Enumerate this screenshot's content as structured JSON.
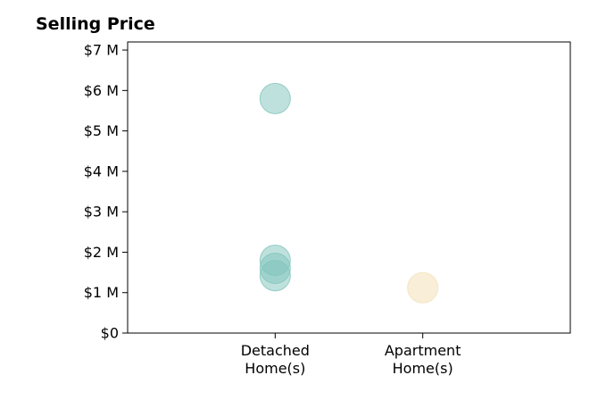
{
  "chart_data": {
    "type": "scatter",
    "title": "Selling Price",
    "xlabel": "",
    "ylabel": "",
    "categories": [
      "Detached\nHome(s)",
      "Apartment\nHome(s)"
    ],
    "ylim": [
      0,
      7.2
    ],
    "y_ticks": [
      "$0",
      "$1 M",
      "$2 M",
      "$3 M",
      "$4 M",
      "$5 M",
      "$6 M",
      "$7 M"
    ],
    "grid": false,
    "series": [
      {
        "category_index": 0,
        "color": "#7fc4bc",
        "values": [
          5.8,
          1.8,
          1.6,
          1.42
        ]
      },
      {
        "category_index": 1,
        "color": "#f3e0b4",
        "values": [
          1.12
        ]
      }
    ]
  }
}
